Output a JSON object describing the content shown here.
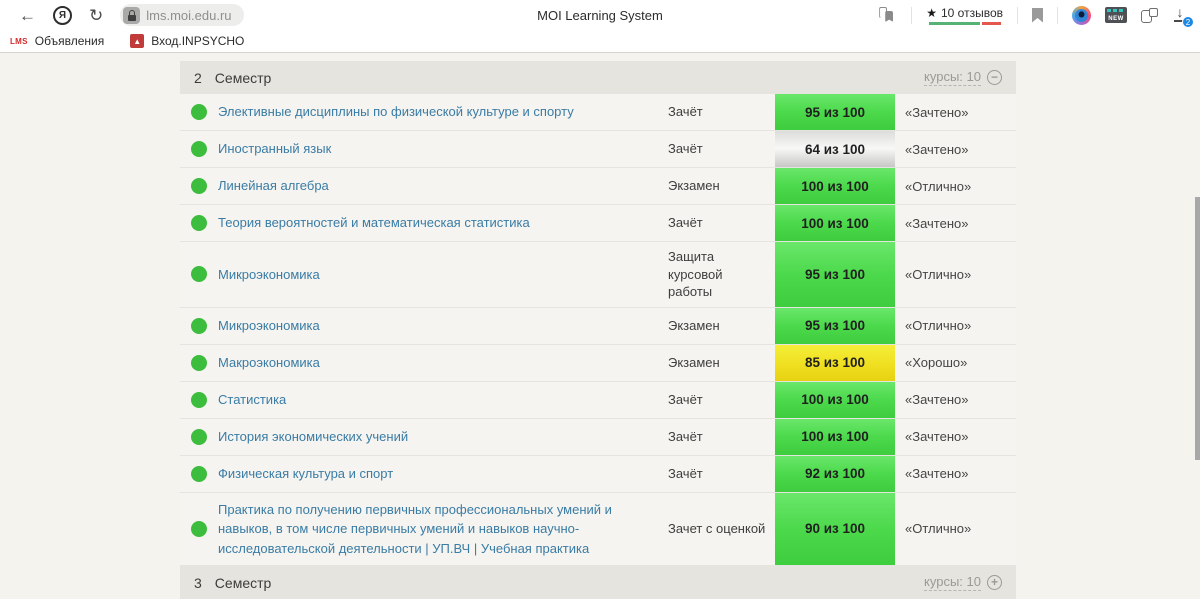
{
  "browser": {
    "url": "lms.moi.edu.ru",
    "page_title": "MOI Learning System",
    "rating": {
      "star": "★",
      "label": "10 отзывов"
    },
    "downloads_badge": "2",
    "bookmarks_bar": [
      {
        "favicon_text": "LMS",
        "label": "Объявления"
      },
      {
        "favicon_text": "▲",
        "label": "Вход.INPSYCHO"
      }
    ]
  },
  "sections": {
    "current": {
      "number": "2",
      "label": "Семестр",
      "courses": "курсы: 10",
      "toggle": "−"
    },
    "next": {
      "number": "3",
      "label": "Семестр",
      "courses": "курсы: 10",
      "toggle": "+"
    }
  },
  "rows": [
    {
      "name": "Элективные дисциплины по физической культуре и спорту",
      "type": "Зачёт",
      "score": "95 из 100",
      "score_color": "green",
      "grade": "«Зачтено»"
    },
    {
      "name": "Иностранный язык",
      "type": "Зачёт",
      "score": "64 из 100",
      "score_color": "gray",
      "grade": "«Зачтено»"
    },
    {
      "name": "Линейная алгебра",
      "type": "Экзамен",
      "score": "100 из 100",
      "score_color": "green",
      "grade": "«Отлично»"
    },
    {
      "name": "Теория вероятностей и математическая статистика",
      "type": "Зачёт",
      "score": "100 из 100",
      "score_color": "green",
      "grade": "«Зачтено»"
    },
    {
      "name": "Микроэкономика",
      "type": "Защита курсовой работы",
      "score": "95 из 100",
      "score_color": "green",
      "grade": "«Отлично»"
    },
    {
      "name": "Микроэкономика",
      "type": "Экзамен",
      "score": "95 из 100",
      "score_color": "green",
      "grade": "«Отлично»"
    },
    {
      "name": "Макроэкономика",
      "type": "Экзамен",
      "score": "85 из 100",
      "score_color": "yellow",
      "grade": "«Хорошо»"
    },
    {
      "name": "Статистика",
      "type": "Зачёт",
      "score": "100 из 100",
      "score_color": "green",
      "grade": "«Зачтено»"
    },
    {
      "name": "История экономических учений",
      "type": "Зачёт",
      "score": "100 из 100",
      "score_color": "green",
      "grade": "«Зачтено»"
    },
    {
      "name": "Физическая культура и спорт",
      "type": "Зачёт",
      "score": "92 из 100",
      "score_color": "green",
      "grade": "«Зачтено»"
    },
    {
      "name": "Практика по получению первичных профессиональных умений и навыков, в том числе первичных умений и навыков научно-исследовательской деятельности | УП.ВЧ | Учебная практика",
      "type": "Зачет с оценкой",
      "score": "90 из 100",
      "score_color": "green",
      "grade": "«Отлично»"
    }
  ],
  "colors": {
    "page_bg": "#f4f3ee",
    "row_bg": "#f5f4f0",
    "header_bg": "#e5e4de",
    "link": "#3a7ca5",
    "status_dot": "#3dbd3d",
    "rating_green": "#56b373",
    "rating_red": "#e4574d",
    "download_badge": "#1e88e5"
  }
}
